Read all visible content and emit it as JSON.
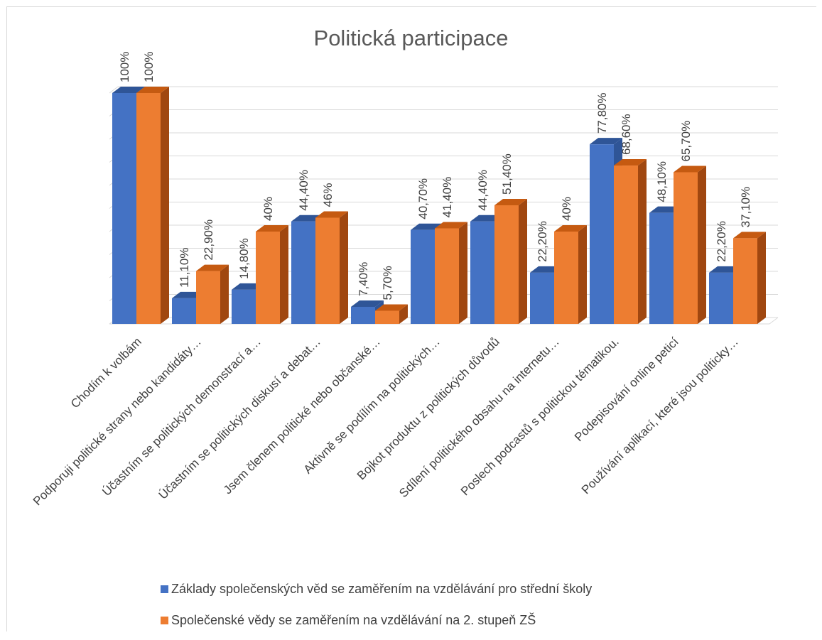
{
  "colors": {
    "series1": "#4472c4",
    "series1_top": "#2f5597",
    "series1_side": "#2f5597",
    "series2": "#ed7d31",
    "series2_top": "#c55a11",
    "series2_side": "#a04710",
    "grid": "#d9d9d9",
    "text": "#404040",
    "title": "#595959"
  },
  "chart_data": {
    "type": "bar",
    "title": "Politická participace",
    "xlabel": "",
    "ylabel": "",
    "ylim": [
      0,
      100
    ],
    "grid": true,
    "legend_position": "bottom",
    "categories": [
      "Chodím k volbám",
      "Podporuji politické strany nebo kandidáty…",
      "Účastním se politických demonstrací a…",
      "Účastním se politických diskusí a debat…",
      "Jsem členem politické nebo občanské…",
      "Aktivně se podílím na politických…",
      "Bojkot produktu z politických důvodů",
      "Sdílení politického obsahu na internetu…",
      "Poslech podcastů s politickou tématikou.",
      "Podepisování online peticí",
      "Používání aplikací, které jsou politicky…"
    ],
    "series": [
      {
        "name": "Základy společenských věd se zaměřením na vzdělávání pro střední školy",
        "values": [
          100,
          11.1,
          14.8,
          44.4,
          7.4,
          40.7,
          44.4,
          22.2,
          77.8,
          48.1,
          22.2
        ],
        "labels": [
          "100%",
          "11,10%",
          "14,80%",
          "44,40%",
          "7,40%",
          "40,70%",
          "44,40%",
          "22,20%",
          "77,80%",
          "48,10%",
          "22,20%"
        ]
      },
      {
        "name": "Společenské vědy se zaměřením na vzdělávání na 2. stupeň ZŠ",
        "values": [
          100,
          22.9,
          40,
          46,
          5.7,
          41.4,
          51.4,
          40,
          68.6,
          65.7,
          37.1
        ],
        "labels": [
          "100%",
          "22,90%",
          "40%",
          "46%",
          "5,70%",
          "41,40%",
          "51,40%",
          "40%",
          "68,60%",
          "65,70%",
          "37,10%"
        ]
      }
    ]
  }
}
